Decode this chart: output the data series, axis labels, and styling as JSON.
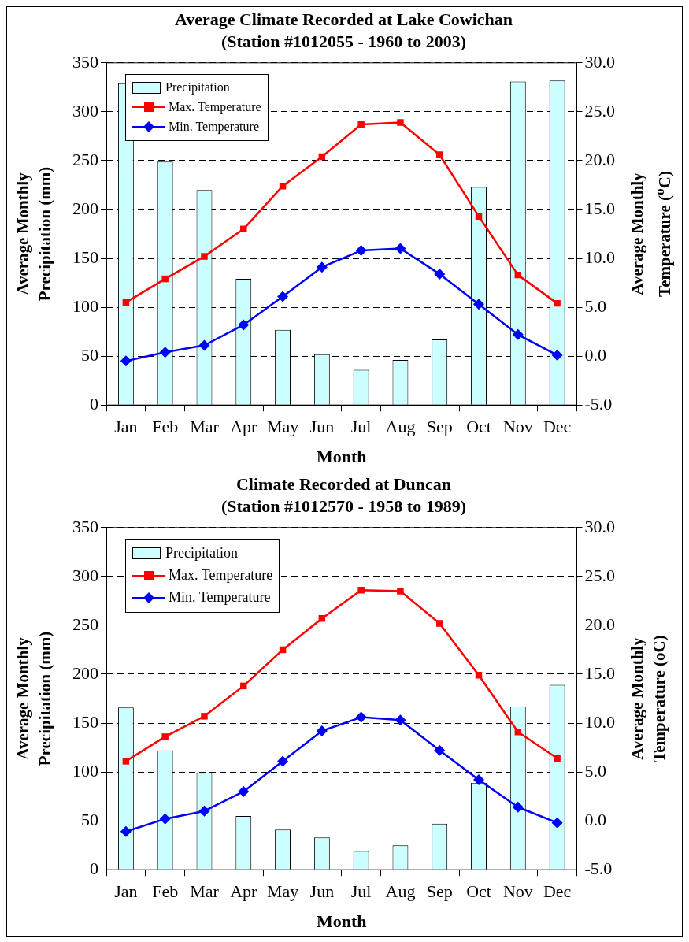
{
  "chart_data": [
    {
      "type": "bar",
      "title": "Average Climate Recorded at Lake Cowichan",
      "subtitle": "(Station #1012055 - 1960 to 2003)",
      "xlabel": "Month",
      "ylabel": "Average Monthly Precipitation (mm)",
      "y2label": "Average Monthly Temperature ($^{o}$C)",
      "categories": [
        "Jan",
        "Feb",
        "Mar",
        "Apr",
        "May",
        "Jun",
        "Jul",
        "Aug",
        "Sep",
        "Oct",
        "Nov",
        "Dec"
      ],
      "series": [
        {
          "name": "Precipitation",
          "color": "#ccffff",
          "values": [
            329,
            249,
            220,
            129,
            77,
            52,
            36,
            46,
            67,
            223,
            331,
            332
          ]
        },
        {
          "name": "Max. Temperature",
          "type": "line",
          "axis": "y2",
          "marker": "square",
          "color": "#ff0000",
          "values": [
            5.5,
            7.9,
            10.2,
            13.0,
            17.4,
            20.4,
            23.7,
            23.9,
            20.6,
            14.3,
            8.3,
            5.4
          ]
        },
        {
          "name": "Min. Temperature",
          "type": "line",
          "axis": "y2",
          "marker": "diamond",
          "color": "#0000ff",
          "values": [
            -0.5,
            0.4,
            1.1,
            3.2,
            6.1,
            9.1,
            10.8,
            11.0,
            8.4,
            5.3,
            2.2,
            0.1
          ]
        }
      ],
      "ylim": [
        0,
        350
      ],
      "yticks": [
        0,
        50,
        100,
        150,
        200,
        250,
        300,
        350
      ],
      "y2lim": [
        -5,
        30
      ],
      "y2ticks": [
        {
          "value": -5,
          "label": "-5.0"
        },
        {
          "value": 0,
          "label": "0.0"
        },
        {
          "value": 5,
          "label": "5.0"
        },
        {
          "value": 10,
          "label": "10.0"
        },
        {
          "value": 15,
          "label": "15.0"
        },
        {
          "value": 20,
          "label": "20.0"
        },
        {
          "value": 25,
          "label": "25.0"
        },
        {
          "value": 30,
          "label": "30.0"
        }
      ],
      "grid": "y",
      "legend": "top left"
    },
    {
      "type": "bar",
      "title": "Climate Recorded at Duncan",
      "subtitle": "(Station #1012570 - 1958 to 1989)",
      "xlabel": "Month",
      "ylabel": "Average Monthly Precipitation (mm)",
      "y2label": "Average Monthly Temperature (oC)",
      "categories": [
        "Jan",
        "Feb",
        "Mar",
        "Apr",
        "May",
        "Jun",
        "Jul",
        "Aug",
        "Sep",
        "Oct",
        "Nov",
        "Dec"
      ],
      "series": [
        {
          "name": "Precipitation",
          "color": "#ccffff",
          "values": [
            166,
            122,
            99,
            55,
            41,
            33,
            19,
            25,
            47,
            89,
            167,
            189
          ]
        },
        {
          "name": "Max. Temperature",
          "type": "line",
          "axis": "y2",
          "marker": "square",
          "color": "#ff0000",
          "values": [
            6.1,
            8.6,
            10.7,
            13.8,
            17.5,
            20.7,
            23.6,
            23.5,
            20.2,
            14.9,
            9.1,
            6.4
          ]
        },
        {
          "name": "Min. Temperature",
          "type": "line",
          "axis": "y2",
          "marker": "diamond",
          "color": "#0000ff",
          "values": [
            -1.1,
            0.2,
            1.0,
            3.0,
            6.1,
            9.2,
            10.6,
            10.3,
            7.2,
            4.2,
            1.4,
            -0.2
          ]
        }
      ],
      "ylim": [
        0,
        350
      ],
      "yticks": [
        0,
        50,
        100,
        150,
        200,
        250,
        300,
        350
      ],
      "y2lim": [
        -5,
        30
      ],
      "y2ticks": [
        {
          "value": -5,
          "label": "-5.0"
        },
        {
          "value": 0,
          "label": "0.0"
        },
        {
          "value": 5,
          "label": "5.0"
        },
        {
          "value": 10,
          "label": "10.0"
        },
        {
          "value": 15,
          "label": "15.0"
        },
        {
          "value": 20,
          "label": "20.0"
        },
        {
          "value": 25,
          "label": "25.0"
        },
        {
          "value": 30,
          "label": "30.0"
        }
      ],
      "grid": "y",
      "legend": "top left"
    }
  ]
}
